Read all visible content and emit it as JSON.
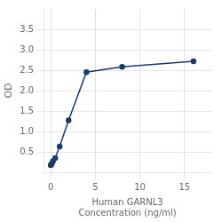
{
  "chart_data": {
    "type": "line",
    "x": [
      0,
      0.0625,
      0.125,
      0.25,
      0.5,
      1,
      2,
      4,
      8,
      16
    ],
    "values": [
      0.175,
      0.19,
      0.21,
      0.27,
      0.35,
      0.63,
      1.27,
      2.45,
      2.58,
      2.72
    ],
    "color": "#1a3a6b",
    "xlabel": [
      "Human GARNL3",
      "Concentration (ng/ml)"
    ],
    "ylabel": "OD",
    "xlim": [
      -0.8,
      18
    ],
    "ylim": [
      0,
      4.0
    ],
    "xticks": [
      0,
      5,
      10,
      15
    ],
    "yticks": [
      0.5,
      {
        "value": 1.0,
        "label": "1.0"
      },
      1.5,
      {
        "value": 2.0,
        "label": "2.0"
      },
      2.5,
      {
        "value": 3.0,
        "label": "3.0"
      },
      3.5
    ],
    "grid": true
  }
}
